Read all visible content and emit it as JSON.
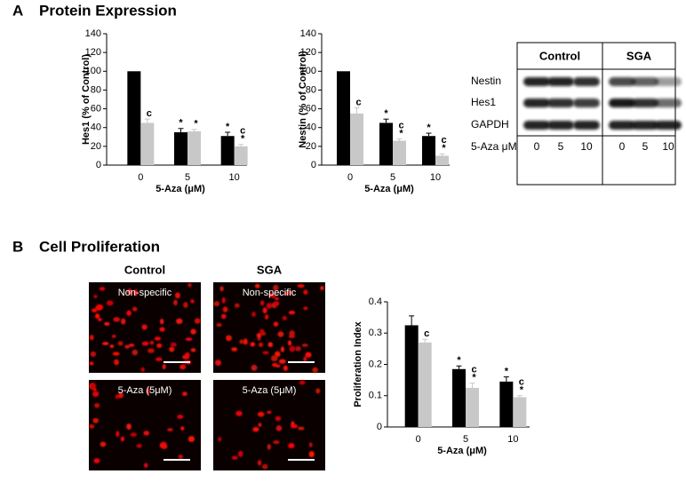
{
  "panels": [
    {
      "letter": "A",
      "title": "Protein Expression"
    },
    {
      "letter": "B",
      "title": "Cell Proliferation"
    }
  ],
  "chart_data": [
    {
      "type": "bar",
      "ylabel": "Hes1 (% of Control)",
      "xlabel": "5-Aza (μM)",
      "categories": [
        "0",
        "5",
        "10"
      ],
      "ylim": [
        0,
        140
      ],
      "yticks": [
        0,
        20,
        40,
        60,
        80,
        100,
        120,
        140
      ],
      "series": [
        {
          "color": "#000000",
          "values": [
            100,
            35,
            31
          ],
          "errors": [
            null,
            4,
            4
          ],
          "annotations": [
            [],
            [
              "*"
            ],
            [
              "*"
            ]
          ]
        },
        {
          "color": "#c8c8c8",
          "values": [
            45,
            36,
            20
          ],
          "errors": [
            4,
            2,
            2
          ],
          "annotations": [
            [
              "c"
            ],
            [
              "*"
            ],
            [
              "c",
              "*"
            ]
          ]
        }
      ]
    },
    {
      "type": "bar",
      "ylabel": "Nestin (% of Control)",
      "xlabel": "5-Aza (μM)",
      "categories": [
        "0",
        "5",
        "10"
      ],
      "ylim": [
        0,
        140
      ],
      "yticks": [
        0,
        20,
        40,
        60,
        80,
        100,
        120,
        140
      ],
      "series": [
        {
          "color": "#000000",
          "values": [
            100,
            45,
            31
          ],
          "errors": [
            null,
            4,
            3
          ],
          "annotations": [
            [],
            [
              "*"
            ],
            [
              "*"
            ]
          ]
        },
        {
          "color": "#c8c8c8",
          "values": [
            55,
            26,
            10
          ],
          "errors": [
            6,
            2,
            2
          ],
          "annotations": [
            [
              "c"
            ],
            [
              "c",
              "*"
            ],
            [
              "c",
              "*"
            ]
          ]
        }
      ]
    },
    {
      "type": "bar",
      "ylabel": "Proliferation Index",
      "xlabel": "5-Aza (μM)",
      "categories": [
        "0",
        "5",
        "10"
      ],
      "ylim": [
        0,
        0.4
      ],
      "yticks": [
        0,
        0.1,
        0.2,
        0.3,
        0.4
      ],
      "series": [
        {
          "color": "#000000",
          "values": [
            0.325,
            0.185,
            0.145
          ],
          "errors": [
            0.03,
            0.01,
            0.015
          ],
          "annotations": [
            [],
            [
              "*"
            ],
            [
              "*"
            ]
          ]
        },
        {
          "color": "#c8c8c8",
          "values": [
            0.27,
            0.125,
            0.095
          ],
          "errors": [
            0.01,
            0.015,
            0.005
          ],
          "annotations": [
            [
              "c"
            ],
            [
              "c",
              "*"
            ],
            [
              "c",
              "*"
            ]
          ]
        }
      ]
    }
  ],
  "blot": {
    "groups": [
      "Control",
      "SGA"
    ],
    "rows": [
      "Nestin",
      "Hes1",
      "GAPDH"
    ],
    "dose_label": "5-Aza μM",
    "doses": [
      0,
      5,
      10,
      0,
      5,
      10
    ]
  },
  "images": {
    "columns": [
      "Control",
      "SGA"
    ],
    "labels": [
      "Non-specific",
      "Non-specific",
      "5-Aza (5μM)",
      "5-Aza (5μM)"
    ]
  }
}
